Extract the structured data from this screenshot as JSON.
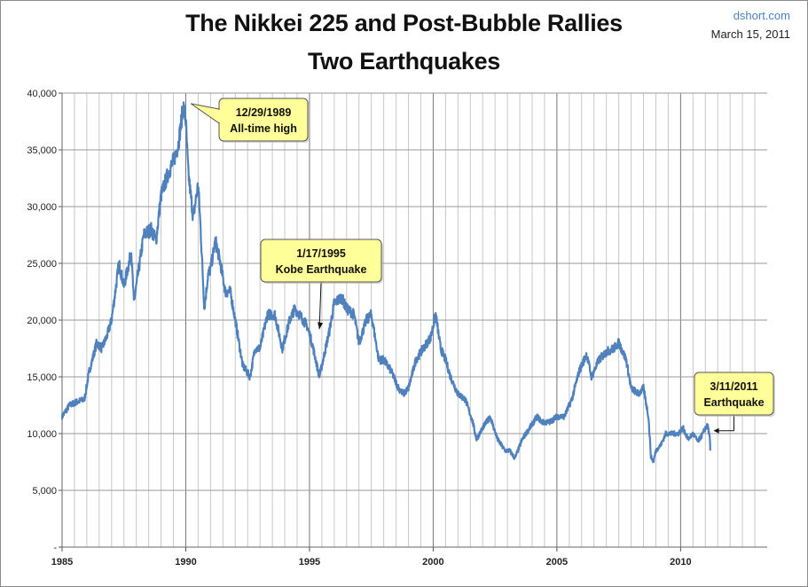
{
  "header": {
    "title_line1": "The Nikkei 225 and Post-Bubble Rallies",
    "title_line2": "Two Earthquakes",
    "source": "dshort.com",
    "date": "March 15, 2011"
  },
  "colors": {
    "line": "#4f81bd",
    "callout_fill": "#ffff99",
    "callout_border": "#555555",
    "grid": "#c8c8c8"
  },
  "chart_data": {
    "type": "line",
    "title": "The Nikkei 225 and Post-Bubble Rallies",
    "subtitle": "Two Earthquakes",
    "xlim": [
      1985,
      2013.5
    ],
    "ylim": [
      0,
      40000
    ],
    "x_ticks": [
      "1985",
      "1990",
      "1995",
      "2000",
      "2005",
      "2010"
    ],
    "y_ticks": [
      "-",
      "5,000",
      "10,000",
      "15,000",
      "20,000",
      "25,000",
      "30,000",
      "35,000",
      "40,000"
    ],
    "grid": "vertical minor lines every 6 months, horizontal lines every 5,000",
    "series": [
      {
        "x": [
          1985.0,
          1985.3,
          1985.6,
          1985.9,
          1986.1,
          1986.4,
          1986.6,
          1986.8,
          1987.0,
          1987.3,
          1987.5,
          1987.8,
          1987.9,
          1988.0,
          1988.3,
          1988.6,
          1988.8,
          1989.0,
          1989.3,
          1989.5,
          1989.7,
          1989.9,
          1990.0,
          1990.1,
          1990.3,
          1990.5,
          1990.6,
          1990.75,
          1990.9,
          1991.0,
          1991.2,
          1991.4,
          1991.6,
          1991.8,
          1992.0,
          1992.3,
          1992.6,
          1992.8,
          1993.0,
          1993.3,
          1993.6,
          1993.9,
          1994.2,
          1994.4,
          1994.6,
          1994.9,
          1995.1,
          1995.4,
          1995.5,
          1995.8,
          1996.0,
          1996.3,
          1996.5,
          1996.8,
          1997.0,
          1997.3,
          1997.5,
          1997.8,
          1998.0,
          1998.3,
          1998.6,
          1998.8,
          1999.0,
          1999.3,
          1999.6,
          1999.9,
          2000.1,
          2000.3,
          2000.5,
          2000.7,
          2001.0,
          2001.3,
          2001.6,
          2001.75,
          2002.0,
          2002.3,
          2002.6,
          2002.9,
          2003.1,
          2003.3,
          2003.6,
          2003.9,
          2004.2,
          2004.4,
          2004.7,
          2005.0,
          2005.3,
          2005.6,
          2005.9,
          2006.2,
          2006.4,
          2006.7,
          2007.0,
          2007.3,
          2007.5,
          2007.8,
          2008.0,
          2008.3,
          2008.5,
          2008.7,
          2008.8,
          2008.9,
          2009.0,
          2009.2,
          2009.4,
          2009.6,
          2009.9,
          2010.1,
          2010.3,
          2010.5,
          2010.7,
          2010.9,
          2011.0,
          2011.1,
          2011.18,
          2011.2
        ],
        "y": [
          11500,
          12500,
          12800,
          13000,
          15500,
          18000,
          17500,
          18500,
          20000,
          25000,
          23000,
          26000,
          21500,
          23000,
          27500,
          28000,
          27000,
          31000,
          33000,
          34000,
          35500,
          38900,
          37500,
          33000,
          29000,
          32000,
          28000,
          21000,
          24000,
          24500,
          27000,
          25000,
          22500,
          22500,
          20000,
          16000,
          15000,
          17500,
          17500,
          20500,
          20500,
          17500,
          20000,
          21000,
          20500,
          19500,
          18000,
          15000,
          16000,
          19000,
          21500,
          22000,
          21000,
          20500,
          18000,
          20000,
          20500,
          16500,
          16500,
          15500,
          14000,
          13500,
          14000,
          16500,
          17500,
          18500,
          20500,
          17500,
          16500,
          15000,
          13500,
          13000,
          11000,
          9500,
          10500,
          11500,
          9500,
          8500,
          8500,
          7800,
          9500,
          10500,
          11500,
          11000,
          11000,
          11500,
          11500,
          13000,
          15500,
          17000,
          15000,
          16500,
          17200,
          17500,
          18000,
          16500,
          14000,
          13500,
          14000,
          11500,
          8000,
          7500,
          8500,
          9000,
          10000,
          10000,
          10000,
          10500,
          9500,
          10000,
          9300,
          10000,
          10500,
          10700,
          9500,
          8500
        ]
      }
    ],
    "annotations": [
      {
        "label_line1": "12/29/1989",
        "label_line2": "All-time high",
        "x": 1989.99,
        "y": 38916
      },
      {
        "label_line1": "1/17/1995",
        "label_line2": "Kobe Earthquake",
        "x": 1995.04,
        "y": 19200
      },
      {
        "label_line1": "3/11/2011",
        "label_line2": "Earthquake",
        "x": 2011.19,
        "y": 10250
      }
    ]
  }
}
